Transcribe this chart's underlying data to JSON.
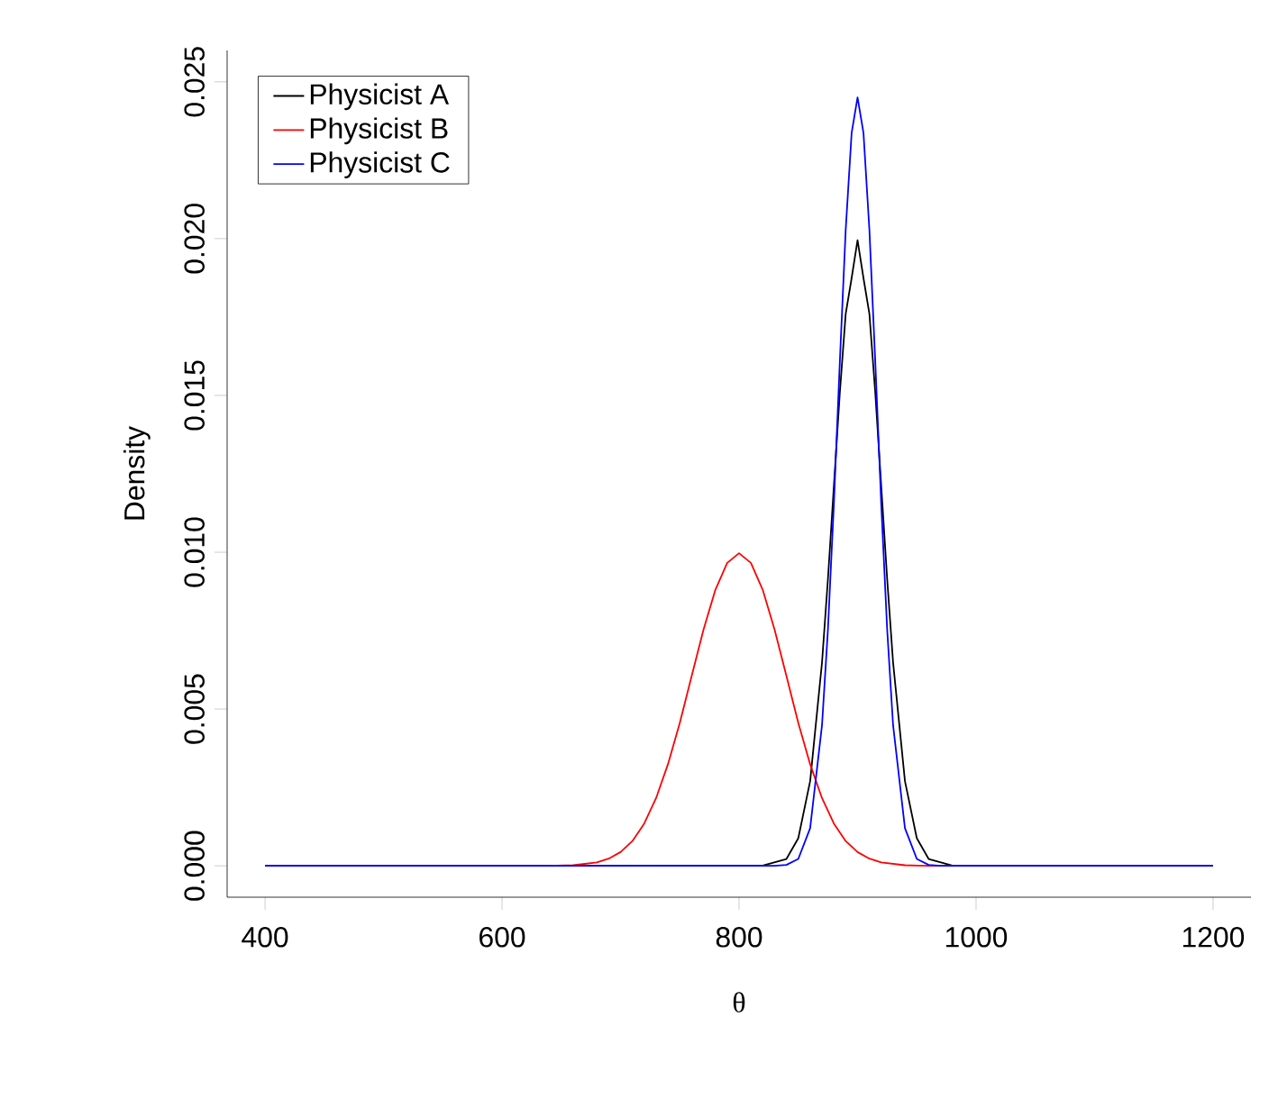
{
  "chart_data": {
    "type": "line",
    "xlabel": "θ",
    "ylabel": "Density",
    "xlim": [
      368,
      1232
    ],
    "ylim": [
      -0.001,
      0.026
    ],
    "xticks": [
      400,
      600,
      800,
      1000,
      1200
    ],
    "yticks": [
      {
        "value": 0,
        "label": "0.000"
      },
      {
        "value": 0.005,
        "label": "0.005"
      },
      {
        "value": 0.01,
        "label": "0.010"
      },
      {
        "value": 0.015,
        "label": "0.015"
      },
      {
        "value": 0.02,
        "label": "0.020"
      },
      {
        "value": 0.025,
        "label": "0.025"
      }
    ],
    "legend": "top left",
    "grid": false,
    "series": [
      {
        "name": "Physicist A",
        "color": "#000000",
        "x": [
          400,
          820,
          840,
          850,
          860,
          870,
          875,
          880,
          885,
          890,
          895,
          900,
          905,
          910,
          915,
          920,
          925,
          930,
          940,
          950,
          960,
          980,
          1200
        ],
        "values": [
          0,
          1e-05,
          0.00022,
          0.00088,
          0.0027,
          0.00648,
          0.00914,
          0.0121,
          0.01506,
          0.0176,
          0.01874,
          0.01995,
          0.01874,
          0.0176,
          0.01506,
          0.0121,
          0.00914,
          0.00648,
          0.0027,
          0.00088,
          0.00022,
          1e-05,
          0
        ]
      },
      {
        "name": "Physicist B",
        "color": "#ff0000",
        "x": [
          400,
          640,
          660,
          680,
          690,
          700,
          710,
          720,
          730,
          740,
          750,
          760,
          770,
          780,
          790,
          800,
          810,
          820,
          830,
          840,
          850,
          860,
          870,
          880,
          890,
          900,
          910,
          920,
          940,
          960,
          1200
        ],
        "values": [
          0,
          0,
          2e-05,
          0.00011,
          0.00023,
          0.00044,
          0.00079,
          0.00135,
          0.00216,
          0.00324,
          0.00456,
          0.00605,
          0.00753,
          0.0088,
          0.00966,
          0.00997,
          0.00966,
          0.0088,
          0.00753,
          0.00605,
          0.00456,
          0.00324,
          0.00216,
          0.00135,
          0.00079,
          0.00044,
          0.00023,
          0.00011,
          2e-05,
          0,
          0
        ]
      },
      {
        "name": "Physicist C",
        "color": "#0000ff",
        "x": [
          400,
          830,
          840,
          850,
          860,
          870,
          875,
          880,
          885,
          890,
          895,
          900,
          905,
          910,
          915,
          920,
          925,
          930,
          940,
          950,
          960,
          970,
          1200
        ],
        "values": [
          0,
          0,
          3e-05,
          0.00022,
          0.0012,
          0.00448,
          0.00753,
          0.01152,
          0.01603,
          0.02028,
          0.02337,
          0.0245,
          0.02337,
          0.02028,
          0.01603,
          0.01152,
          0.00753,
          0.00448,
          0.0012,
          0.00022,
          3e-05,
          0,
          0
        ]
      }
    ]
  }
}
